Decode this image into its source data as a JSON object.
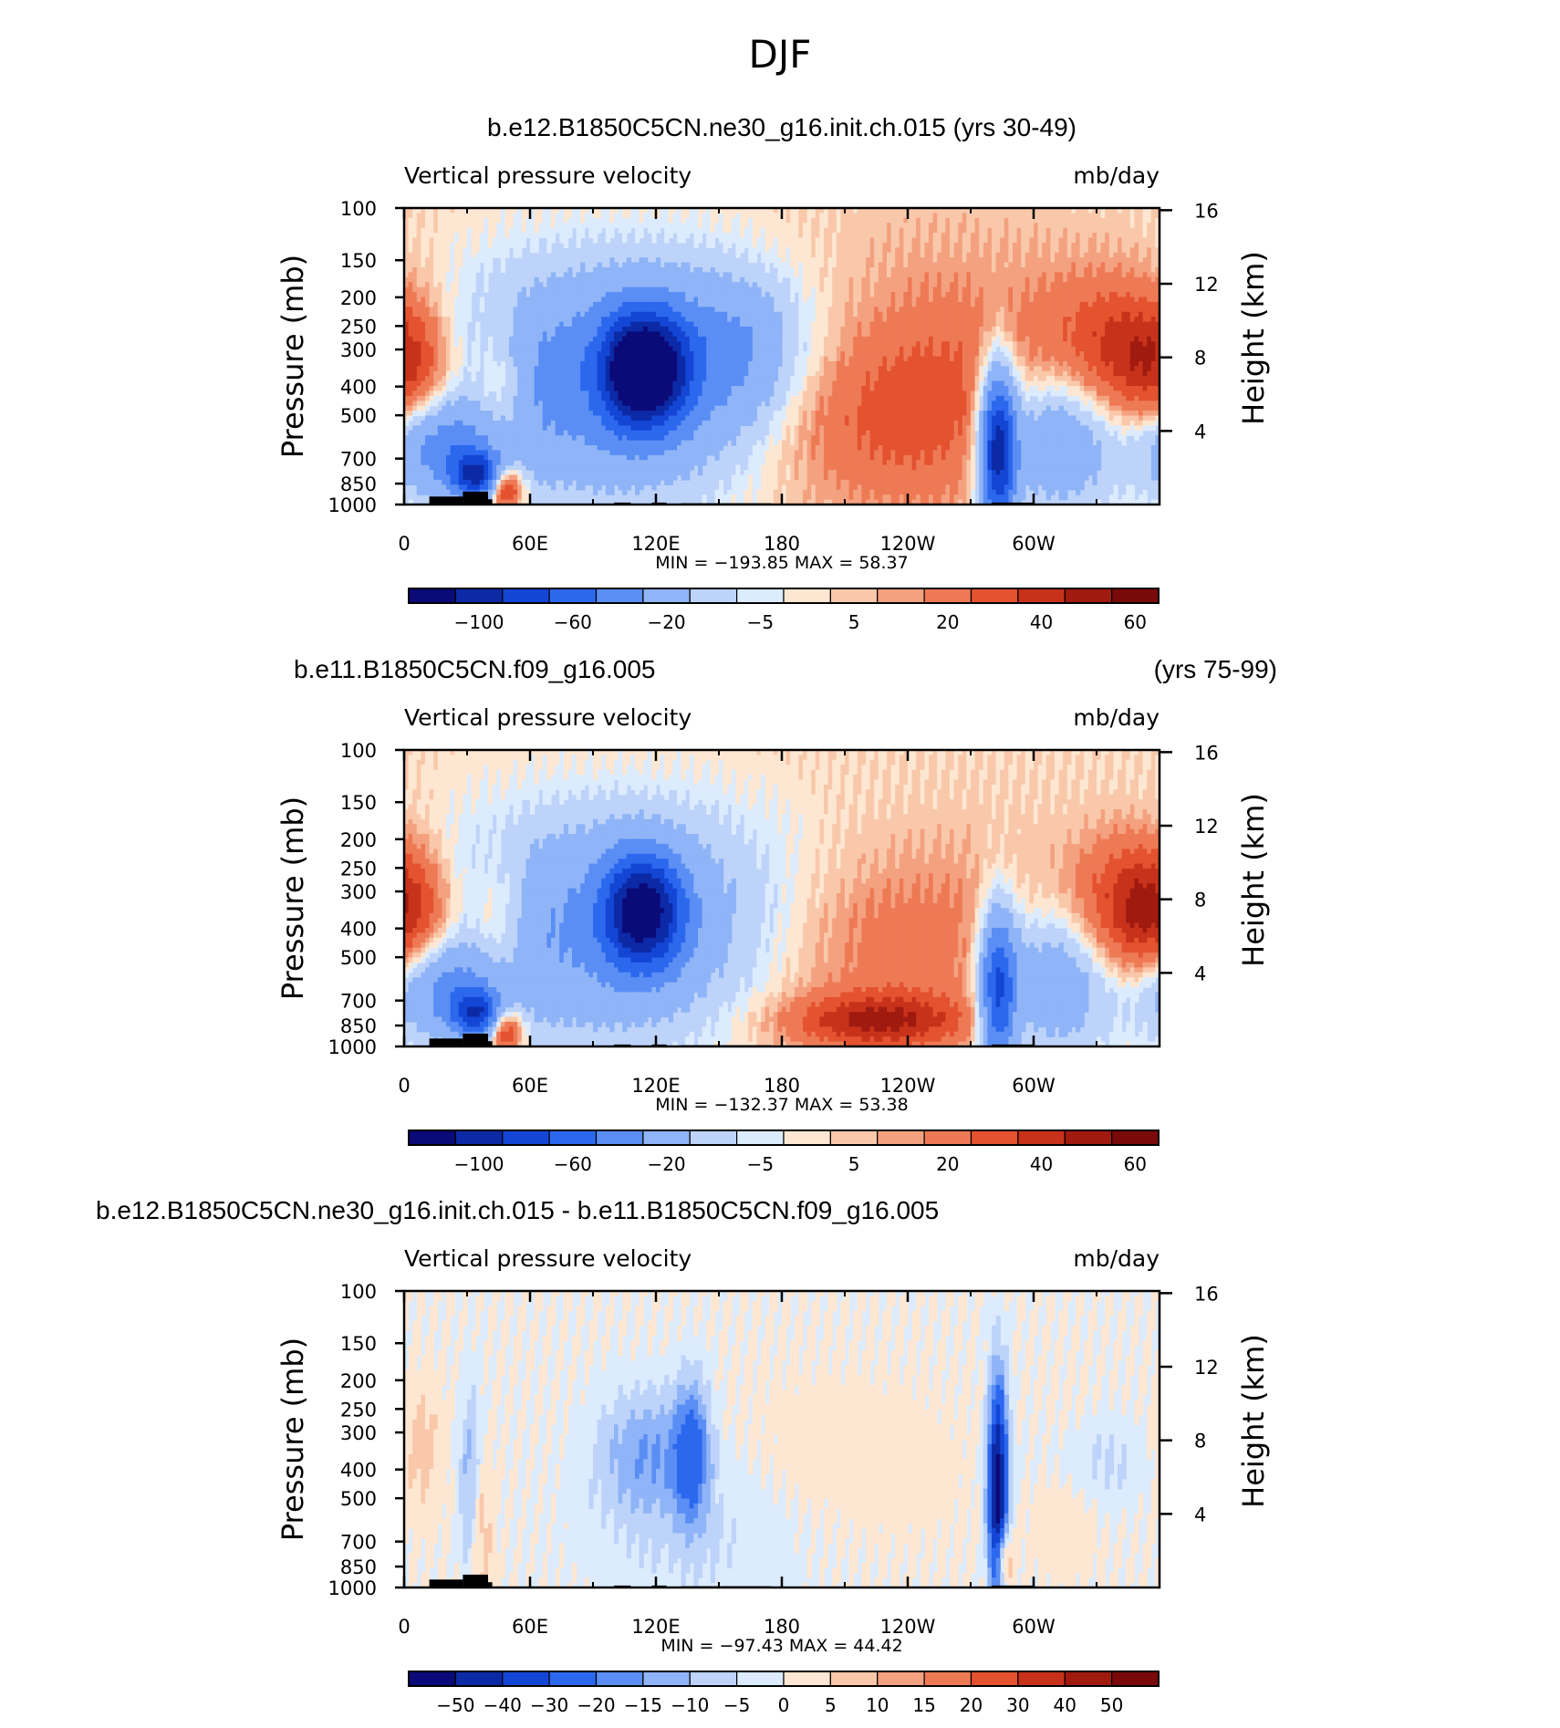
{
  "figure": {
    "title": "DJF"
  },
  "colors": {
    "abs_scale": [
      "#0a0a78",
      "#0c2aa6",
      "#1446d6",
      "#2c68ee",
      "#5a8ef4",
      "#8fb4f7",
      "#bdd3fa",
      "#dcebfd",
      "#fde7d2",
      "#f9c8aa",
      "#f4a180",
      "#ee7a55",
      "#e4522f",
      "#c8321a",
      "#a01a10",
      "#7a0a0a"
    ],
    "diff_scale": [
      "#0a0a78",
      "#0c2aa6",
      "#1446d6",
      "#2c68ee",
      "#5a8ef4",
      "#8fb4f7",
      "#bdd3fa",
      "#dcebfd",
      "#fde7d2",
      "#f9c8aa",
      "#f4a180",
      "#ee7a55",
      "#e4522f",
      "#c8321a",
      "#a01a10",
      "#7a0a0a"
    ],
    "topography": "#000000"
  },
  "chart_data": [
    {
      "type": "heatmap",
      "title": "b.e12.B1850C5CN.ne30_g16.init.ch.015 (yrs 30-49)",
      "title_right": "",
      "left_string": "Vertical pressure velocity",
      "right_string": "mb/day",
      "ylabel": "Pressure (mb)",
      "y2label": "Height (km)",
      "x_ticks": [
        "0",
        "60E",
        "120E",
        "180",
        "120W",
        "60W"
      ],
      "y_ticks": [
        "100",
        "150",
        "200",
        "250",
        "300",
        "400",
        "500",
        "700",
        "850",
        "1000"
      ],
      "y2_ticks": [
        "16",
        "12",
        "8",
        "4"
      ],
      "stats": "MIN = −193.85   MAX =   58.37",
      "colorbar_labels": [
        "−100",
        "−60",
        "−20",
        "−5",
        "5",
        "20",
        "40",
        "60"
      ],
      "scale": "abs",
      "features": [
        {
          "lon": 20,
          "p": 650,
          "v": -45,
          "wx": 10,
          "wy": 0.5
        },
        {
          "lon": 35,
          "p": 800,
          "v": -85,
          "wx": 4,
          "wy": 0.25
        },
        {
          "lon": 45,
          "p": 420,
          "v": 28,
          "wx": 5,
          "wy": 0.8
        },
        {
          "lon": 48,
          "p": 880,
          "v": 55,
          "wx": 3,
          "wy": 0.25
        },
        {
          "lon": 3,
          "p": 350,
          "v": 30,
          "wx": 8,
          "wy": 0.7
        },
        {
          "lon": 110,
          "p": 380,
          "v": -60,
          "wx": 32,
          "wy": 1.2
        },
        {
          "lon": 108,
          "p": 350,
          "v": -90,
          "wx": 5,
          "wy": 0.6
        },
        {
          "lon": 123,
          "p": 350,
          "v": -75,
          "wx": 5,
          "wy": 0.6
        },
        {
          "lon": 158,
          "p": 300,
          "v": -20,
          "wx": 10,
          "wy": 0.7
        },
        {
          "lon": 222,
          "p": 500,
          "v": 30,
          "wx": 30,
          "wy": 1.0
        },
        {
          "lon": 245,
          "p": 250,
          "v": 10,
          "wx": 30,
          "wy": 1.2
        },
        {
          "lon": 283,
          "p": 650,
          "v": -110,
          "wx": 3,
          "wy": 0.9
        },
        {
          "lon": 310,
          "p": 600,
          "v": -45,
          "wx": 10,
          "wy": 0.8
        },
        {
          "lon": 340,
          "p": 300,
          "v": 32,
          "wx": 12,
          "wy": 0.8
        }
      ],
      "bg": 6
    },
    {
      "type": "heatmap",
      "title": "b.e11.B1850C5CN.f09_g16.005",
      "title_right": "(yrs 75-99)",
      "left_string": "Vertical pressure velocity",
      "right_string": "mb/day",
      "ylabel": "Pressure (mb)",
      "y2label": "Height (km)",
      "x_ticks": [
        "0",
        "60E",
        "120E",
        "180",
        "120W",
        "60W"
      ],
      "y_ticks": [
        "100",
        "150",
        "200",
        "250",
        "300",
        "400",
        "500",
        "700",
        "850",
        "1000"
      ],
      "y2_ticks": [
        "16",
        "12",
        "8",
        "4"
      ],
      "stats": "MIN = −132.37   MAX =   53.38",
      "colorbar_labels": [
        "−100",
        "−60",
        "−20",
        "−5",
        "5",
        "20",
        "40",
        "60"
      ],
      "scale": "abs",
      "features": [
        {
          "lon": 20,
          "p": 650,
          "v": -40,
          "wx": 10,
          "wy": 0.5
        },
        {
          "lon": 35,
          "p": 780,
          "v": -75,
          "wx": 4,
          "wy": 0.25
        },
        {
          "lon": 45,
          "p": 400,
          "v": 25,
          "wx": 5,
          "wy": 0.8
        },
        {
          "lon": 48,
          "p": 880,
          "v": 50,
          "wx": 3,
          "wy": 0.25
        },
        {
          "lon": 3,
          "p": 350,
          "v": 30,
          "wx": 8,
          "wy": 0.7
        },
        {
          "lon": 105,
          "p": 400,
          "v": -50,
          "wx": 32,
          "wy": 1.2
        },
        {
          "lon": 108,
          "p": 350,
          "v": -75,
          "wx": 5,
          "wy": 0.6
        },
        {
          "lon": 122,
          "p": 350,
          "v": -60,
          "wx": 5,
          "wy": 0.6
        },
        {
          "lon": 210,
          "p": 450,
          "v": 22,
          "wx": 35,
          "wy": 1.1
        },
        {
          "lon": 225,
          "p": 820,
          "v": 38,
          "wx": 15,
          "wy": 0.3
        },
        {
          "lon": 283,
          "p": 650,
          "v": -80,
          "wx": 3,
          "wy": 0.9
        },
        {
          "lon": 310,
          "p": 600,
          "v": -40,
          "wx": 10,
          "wy": 0.8
        },
        {
          "lon": 345,
          "p": 350,
          "v": 35,
          "wx": 10,
          "wy": 0.8
        }
      ],
      "bg": 6
    },
    {
      "type": "heatmap",
      "title": "b.e12.B1850C5CN.ne30_g16.init.ch.015 - b.e11.B1850C5CN.f09_g16.005",
      "title_right": "",
      "left_string": "Vertical pressure velocity",
      "right_string": "mb/day",
      "ylabel": "Pressure (mb)",
      "y2label": "Height (km)",
      "x_ticks": [
        "0",
        "60E",
        "120E",
        "180",
        "120W",
        "60W"
      ],
      "y_ticks": [
        "100",
        "150",
        "200",
        "250",
        "300",
        "400",
        "500",
        "700",
        "850",
        "1000"
      ],
      "y2_ticks": [
        "16",
        "12",
        "8",
        "4"
      ],
      "stats": "MIN = −97.43   MAX =   44.42",
      "colorbar_labels": [
        "−50",
        "−40",
        "−30",
        "−20",
        "−15",
        "−10",
        "−5",
        "0",
        "5",
        "10",
        "15",
        "20",
        "30",
        "40",
        "50"
      ],
      "scale": "diff",
      "features": [
        {
          "lon": 32,
          "p": 450,
          "v": -15,
          "wx": 2,
          "wy": 1.0
        },
        {
          "lon": 36,
          "p": 600,
          "v": 12,
          "wx": 2,
          "wy": 0.9
        },
        {
          "lon": 8,
          "p": 350,
          "v": 8,
          "wx": 4,
          "wy": 0.7
        },
        {
          "lon": 115,
          "p": 350,
          "v": -14,
          "wx": 8,
          "wy": 0.7
        },
        {
          "lon": 137,
          "p": 350,
          "v": -22,
          "wx": 3,
          "wy": 0.8
        },
        {
          "lon": 145,
          "p": 600,
          "v": -6,
          "wx": 20,
          "wy": 1.0
        },
        {
          "lon": 195,
          "p": 400,
          "v": 4,
          "wx": 25,
          "wy": 1.0
        },
        {
          "lon": 283,
          "p": 500,
          "v": -60,
          "wx": 1.6,
          "wy": 1.2
        },
        {
          "lon": 285,
          "p": 800,
          "v": 30,
          "wx": 1.5,
          "wy": 0.4
        },
        {
          "lon": 325,
          "p": 380,
          "v": -8,
          "wx": 10,
          "wy": 0.5
        },
        {
          "lon": 315,
          "p": 450,
          "v": 6,
          "wx": 6,
          "wy": 0.8
        }
      ],
      "bg": 7
    }
  ]
}
